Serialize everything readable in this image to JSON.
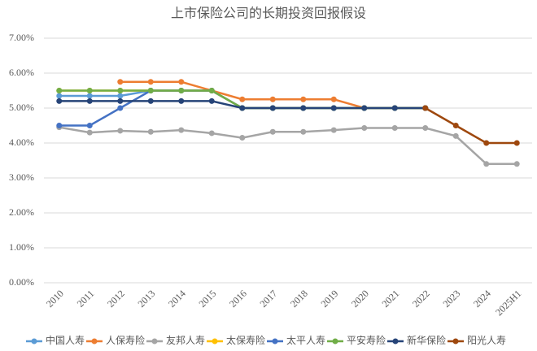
{
  "chart_data": {
    "type": "line",
    "title": "上市保险公司的长期投资回报假设",
    "categories": [
      "2010",
      "2011",
      "2012",
      "2013",
      "2014",
      "2015",
      "2016",
      "2017",
      "2018",
      "2019",
      "2020",
      "2021",
      "2022",
      "2023",
      "2024",
      "2025H1"
    ],
    "ylim": [
      0,
      7
    ],
    "yticks": [
      {
        "value": 0,
        "label": "0.00%"
      },
      {
        "value": 1,
        "label": "1.00%"
      },
      {
        "value": 2,
        "label": "2.00%"
      },
      {
        "value": 3,
        "label": "3.00%"
      },
      {
        "value": 4,
        "label": "4.00%"
      },
      {
        "value": 5,
        "label": "5.00%"
      },
      {
        "value": 6,
        "label": "6.00%"
      },
      {
        "value": 7,
        "label": "7.00%"
      }
    ],
    "grid": true,
    "legend": "bottom",
    "series": [
      {
        "name": "中国人寿",
        "color": "#5b9bd5",
        "values": [
          5.35,
          5.35,
          5.35,
          5.5,
          5.5,
          5.5,
          5.0,
          5.0,
          5.0,
          5.0,
          5.0,
          5.0,
          5.0,
          null,
          null,
          null
        ]
      },
      {
        "name": "人保寿险",
        "color": "#ed7d31",
        "values": [
          null,
          null,
          5.75,
          5.75,
          5.75,
          5.5,
          5.25,
          5.25,
          5.25,
          5.25,
          5.0,
          5.0,
          5.0,
          null,
          null,
          null
        ]
      },
      {
        "name": "友邦人寿",
        "color": "#a5a5a5",
        "values": [
          4.45,
          4.3,
          4.35,
          4.32,
          4.37,
          4.28,
          4.15,
          4.32,
          4.32,
          4.37,
          4.43,
          4.43,
          4.43,
          4.2,
          3.4,
          3.4
        ]
      },
      {
        "name": "太保寿险",
        "color": "#ffc000",
        "values": [
          5.5,
          5.5,
          5.5,
          5.5,
          5.5,
          5.5,
          5.0,
          5.0,
          5.0,
          5.0,
          5.0,
          5.0,
          5.0,
          null,
          null,
          null
        ]
      },
      {
        "name": "太平人寿",
        "color": "#4472c4",
        "values": [
          4.5,
          4.5,
          5.0,
          5.5,
          5.5,
          5.5,
          5.0,
          5.0,
          5.0,
          5.0,
          5.0,
          5.0,
          5.0,
          null,
          null,
          null
        ]
      },
      {
        "name": "平安寿险",
        "color": "#70ad47",
        "values": [
          5.5,
          5.5,
          5.5,
          5.5,
          5.5,
          5.5,
          5.0,
          5.0,
          5.0,
          5.0,
          5.0,
          5.0,
          5.0,
          null,
          null,
          null
        ]
      },
      {
        "name": "新华保险",
        "color": "#264478",
        "values": [
          5.2,
          5.2,
          5.2,
          5.2,
          5.2,
          5.2,
          5.0,
          5.0,
          5.0,
          5.0,
          5.0,
          5.0,
          5.0,
          null,
          null,
          null
        ]
      },
      {
        "name": "阳光人寿",
        "color": "#9e480e",
        "values": [
          null,
          null,
          null,
          null,
          null,
          null,
          null,
          null,
          null,
          null,
          null,
          null,
          5.0,
          4.5,
          4.0,
          4.0
        ]
      }
    ]
  }
}
